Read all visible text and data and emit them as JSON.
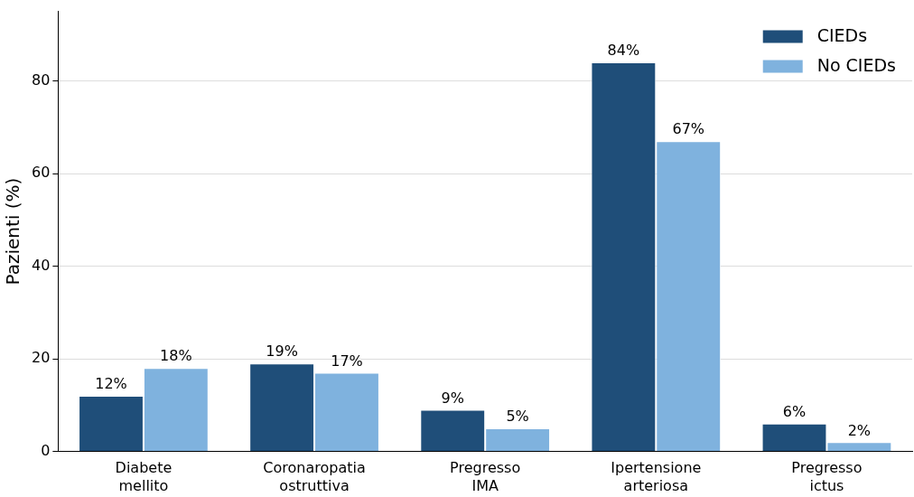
{
  "chart_data": {
    "type": "bar",
    "ylabel": "Pazienti (%)",
    "categories": [
      "Diabete mellito",
      "Coronaropatia ostruttiva",
      "Pregresso IMA",
      "Ipertensione arteriosa",
      "Pregresso ictus"
    ],
    "series": [
      {
        "name": "CIEDs",
        "color": "#1f4e79",
        "values": [
          12,
          19,
          9,
          84,
          6
        ],
        "value_labels": [
          "12%",
          "19%",
          "9%",
          "84%",
          "6%"
        ]
      },
      {
        "name": "No CIEDs",
        "color": "#7fb2de",
        "values": [
          18,
          17,
          5,
          67,
          2
        ],
        "value_labels": [
          "18%",
          "17%",
          "5%",
          "67%",
          "2%"
        ]
      }
    ],
    "ylim": [
      0,
      95
    ],
    "yticks": [
      0,
      20,
      40,
      60,
      80
    ],
    "grid": "y",
    "legend": "top right"
  }
}
